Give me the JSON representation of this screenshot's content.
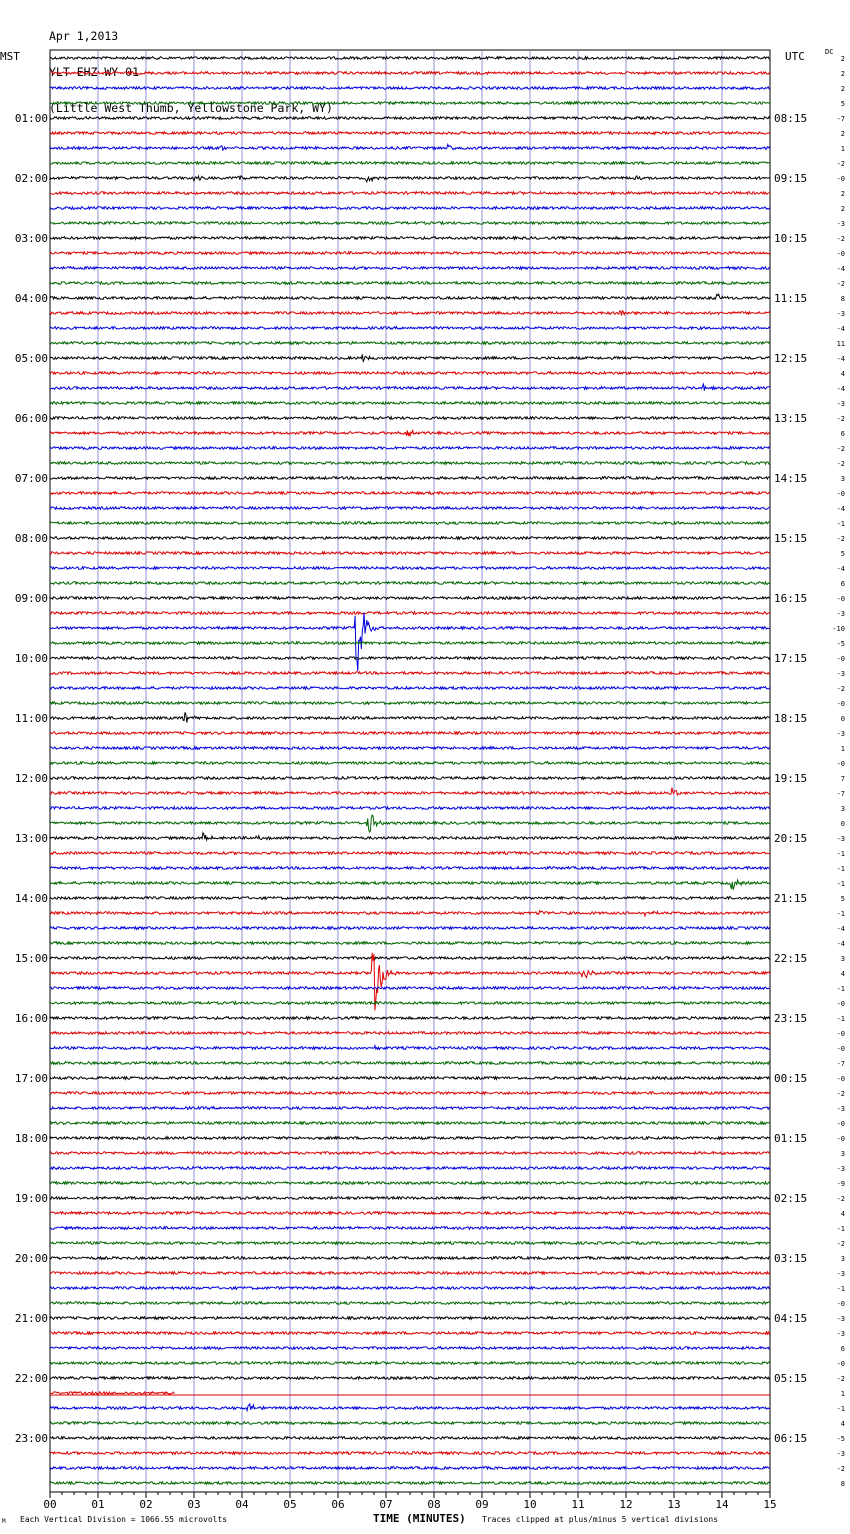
{
  "header": {
    "date": "Apr 1,2013",
    "station": "YLT EHZ WY 01",
    "location": "(Little West Thumb, Yellowstone Park, WY)"
  },
  "left_tz": "MST",
  "right_tz": "UTC",
  "dc_label": "DC",
  "footer": {
    "scale_note": "Each Vertical Division = 1066.55 microvolts",
    "xlabel": "TIME (MINUTES)",
    "clip_note": "Traces clipped at plus/minus 5 vertical divisions",
    "corner_mark": "M"
  },
  "chart_data": {
    "type": "line",
    "title": "",
    "xlabel": "TIME (MINUTES)",
    "xlim": [
      0,
      15
    ],
    "x_ticks": [
      "00",
      "01",
      "02",
      "03",
      "04",
      "05",
      "06",
      "07",
      "08",
      "09",
      "10",
      "11",
      "12",
      "13",
      "14",
      "15"
    ],
    "trace_minutes": 15,
    "trace_count": 96,
    "trace_colors": [
      "#000000",
      "#dd0000",
      "#0000dd",
      "#006600"
    ],
    "left_hour_labels": [
      "01:00",
      "02:00",
      "03:00",
      "04:00",
      "05:00",
      "06:00",
      "07:00",
      "08:00",
      "09:00",
      "10:00",
      "11:00",
      "12:00",
      "13:00",
      "14:00",
      "15:00",
      "16:00",
      "17:00",
      "18:00",
      "19:00",
      "20:00",
      "21:00",
      "22:00",
      "23:00"
    ],
    "right_hour_labels": [
      "08:15",
      "09:15",
      "10:15",
      "11:15",
      "12:15",
      "13:15",
      "14:15",
      "15:15",
      "16:15",
      "17:15",
      "18:15",
      "19:15",
      "20:15",
      "21:15",
      "22:15",
      "23:15",
      "00:15",
      "01:15",
      "02:15",
      "03:15",
      "04:15",
      "05:15",
      "06:15"
    ],
    "dc_offsets": [
      "2",
      "2",
      "2",
      "5",
      "-7",
      "2",
      "1",
      "-2",
      "-0",
      "2",
      "2",
      "-3",
      "-2",
      "-0",
      "-4",
      "-2",
      "8",
      "-3",
      "-4",
      "11",
      "-4",
      "4",
      "-4",
      "-3",
      "-2",
      "6",
      "-2",
      "-2",
      "3",
      "-0",
      "-4",
      "-1",
      "-2",
      "5",
      "-4",
      "6",
      "-0",
      "-3",
      "-10",
      "-5",
      "-0",
      "-3",
      "-2",
      "-0",
      "0",
      "-3",
      "1",
      "-0",
      "7",
      "-7",
      "3",
      "0",
      "-3",
      "-1",
      "-1",
      "-1",
      "5",
      "-1",
      "-4",
      "-4",
      "3",
      "4",
      "-1",
      "-0",
      "-1",
      "-0",
      "-0",
      "-7",
      "-0",
      "-2",
      "-3",
      "-0",
      "-0",
      "3",
      "-3",
      "-9",
      "-2",
      "4",
      "-1",
      "-2",
      "3",
      "-3",
      "-1",
      "-0",
      "-3",
      "-3",
      "6",
      "-0",
      "-2",
      "1",
      "-1",
      "4",
      "-5",
      "-3",
      "-2",
      "8"
    ],
    "partial_traces": [
      {
        "trace": 89,
        "end_minute": 2.6
      }
    ],
    "events": [
      {
        "trace": 1,
        "minute": 5.2,
        "amp": 1.2
      },
      {
        "trace": 2,
        "minute": 3.7,
        "amp": 1.5
      },
      {
        "trace": 6,
        "minute": 3.6,
        "amp": 3
      },
      {
        "trace": 6,
        "minute": 8.3,
        "amp": 3
      },
      {
        "trace": 8,
        "minute": 3.0,
        "amp": 3
      },
      {
        "trace": 8,
        "minute": 3.95,
        "amp": 3
      },
      {
        "trace": 8,
        "minute": 6.6,
        "amp": 5
      },
      {
        "trace": 8,
        "minute": 12.2,
        "amp": 3
      },
      {
        "trace": 16,
        "minute": 13.9,
        "amp": 4
      },
      {
        "trace": 17,
        "minute": 11.9,
        "amp": 3
      },
      {
        "trace": 20,
        "minute": 6.5,
        "amp": 4
      },
      {
        "trace": 22,
        "minute": 13.6,
        "amp": 4
      },
      {
        "trace": 25,
        "minute": 7.45,
        "amp": 4
      },
      {
        "trace": 38,
        "minute": 6.4,
        "amp": 60
      },
      {
        "trace": 44,
        "minute": 2.8,
        "amp": 8
      },
      {
        "trace": 49,
        "minute": 12.95,
        "amp": 8
      },
      {
        "trace": 51,
        "minute": 6.65,
        "amp": 14
      },
      {
        "trace": 52,
        "minute": 3.2,
        "amp": 8
      },
      {
        "trace": 52,
        "minute": 4.3,
        "amp": 3
      },
      {
        "trace": 55,
        "minute": 14.2,
        "amp": 8
      },
      {
        "trace": 57,
        "minute": 10.2,
        "amp": 3
      },
      {
        "trace": 57,
        "minute": 12.4,
        "amp": 3
      },
      {
        "trace": 61,
        "minute": 6.75,
        "amp": 65
      },
      {
        "trace": 61,
        "minute": 11.1,
        "amp": 7
      },
      {
        "trace": 66,
        "minute": 6.75,
        "amp": 5
      },
      {
        "trace": 90,
        "minute": 4.15,
        "amp": 6
      }
    ]
  }
}
